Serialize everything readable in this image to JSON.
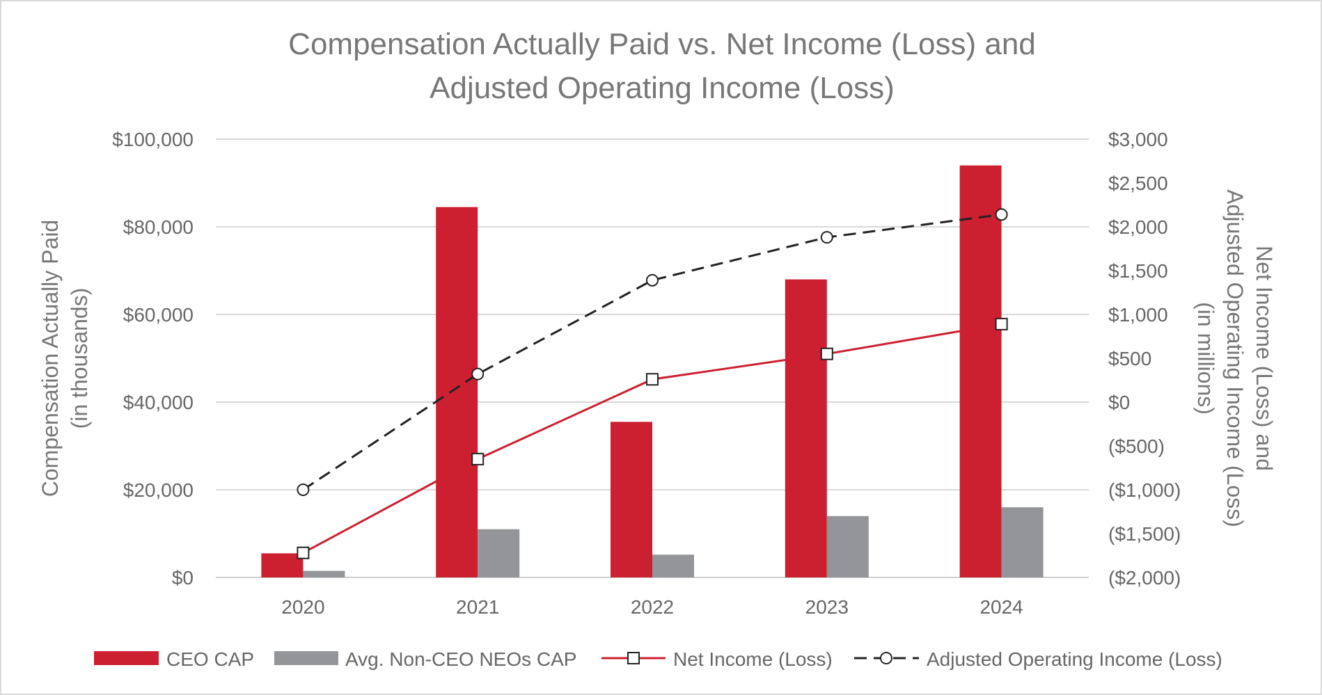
{
  "chart_data": {
    "type": "bar",
    "title": [
      "Compensation Actually Paid vs. Net Income (Loss) and",
      "Adjusted Operating Income (Loss)"
    ],
    "categories": [
      "2020",
      "2021",
      "2022",
      "2023",
      "2024"
    ],
    "y_left": {
      "title": [
        "Compensation Actually Paid",
        "(in thousands)"
      ],
      "ylim": [
        0,
        100000
      ],
      "ticks": [
        0,
        20000,
        40000,
        60000,
        80000,
        100000
      ],
      "tick_labels": [
        "$0",
        "$20,000",
        "$40,000",
        "$60,000",
        "$80,000",
        "$100,000"
      ]
    },
    "y_right": {
      "title": [
        "Net Income (Loss) and",
        "Adjusted Operating Income (Loss)",
        "(in millions)"
      ],
      "ylim": [
        -2000,
        3000
      ],
      "ticks": [
        -2000,
        -1500,
        -1000,
        -500,
        0,
        500,
        1000,
        1500,
        2000,
        2500,
        3000
      ],
      "tick_labels": [
        "($2,000)",
        "($1,500)",
        "($1,000)",
        "($500)",
        "$0",
        "$500",
        "$1,000",
        "$1,500",
        "$2,000",
        "$2,500",
        "$3,000"
      ]
    },
    "series": [
      {
        "name": "CEO CAP",
        "kind": "bar",
        "axis": "left",
        "color": "#cc1f2f",
        "values": [
          5500,
          84500,
          35500,
          68000,
          94000
        ]
      },
      {
        "name": "Avg. Non-CEO NEOs CAP",
        "kind": "bar",
        "axis": "left",
        "color": "#939598",
        "values": [
          1500,
          11000,
          5200,
          14000,
          16000
        ]
      },
      {
        "name": "Net Income (Loss)",
        "kind": "line",
        "axis": "right",
        "color": "#cc1f2f",
        "marker": "square",
        "dash": "solid",
        "values": [
          -1720,
          -650,
          260,
          550,
          890
        ]
      },
      {
        "name": "Adjusted Operating Income (Loss)",
        "kind": "line",
        "axis": "right",
        "color": "#222222",
        "marker": "circle",
        "dash": "dashed",
        "values": [
          -1000,
          320,
          1390,
          1880,
          2140
        ]
      }
    ],
    "grid": true,
    "legend_position": "bottom"
  }
}
